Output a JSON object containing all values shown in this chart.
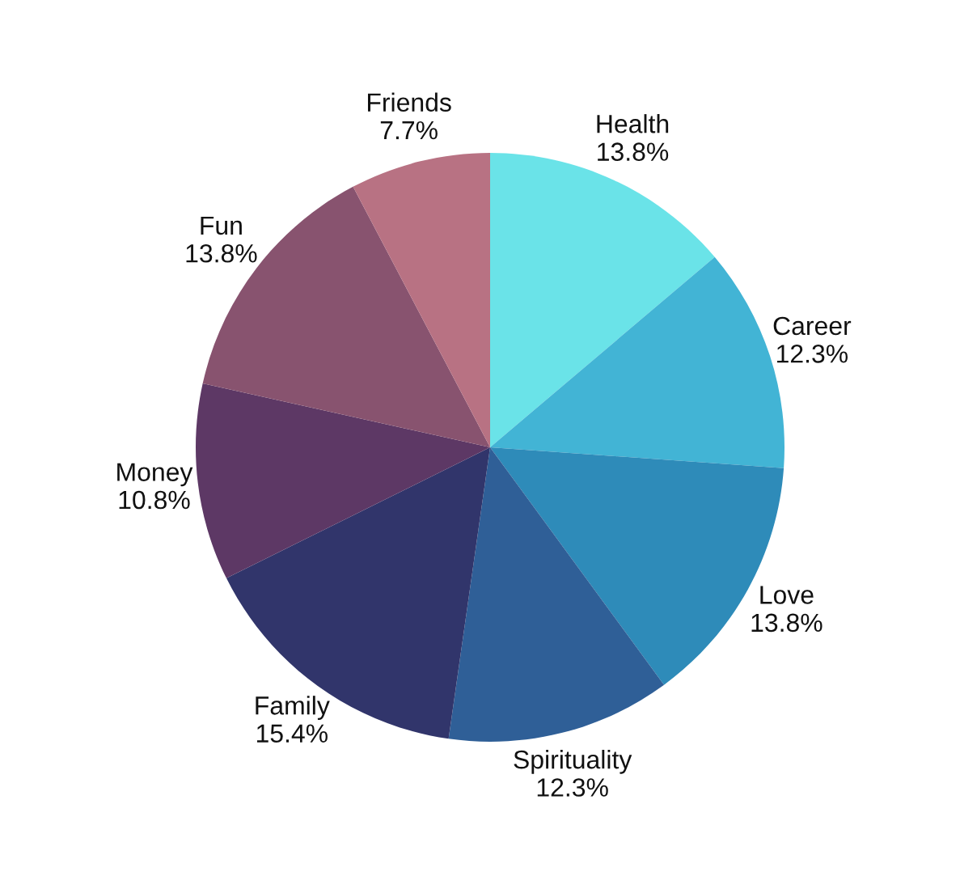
{
  "chart_data": {
    "type": "pie",
    "categories": [
      "Health",
      "Career",
      "Love",
      "Spirituality",
      "Family",
      "Money",
      "Fun",
      "Friends"
    ],
    "values": [
      13.8,
      12.3,
      13.8,
      12.3,
      15.4,
      10.8,
      13.8,
      7.7
    ],
    "value_labels": [
      "13.8%",
      "12.3%",
      "13.8%",
      "12.3%",
      "15.4%",
      "10.8%",
      "13.8%",
      "7.7%"
    ],
    "colors": [
      "#6ae3e8",
      "#42b4d5",
      "#2e8bb9",
      "#2f5f97",
      "#31356b",
      "#5d3865",
      "#88536f",
      "#b87283"
    ],
    "legend": false
  }
}
